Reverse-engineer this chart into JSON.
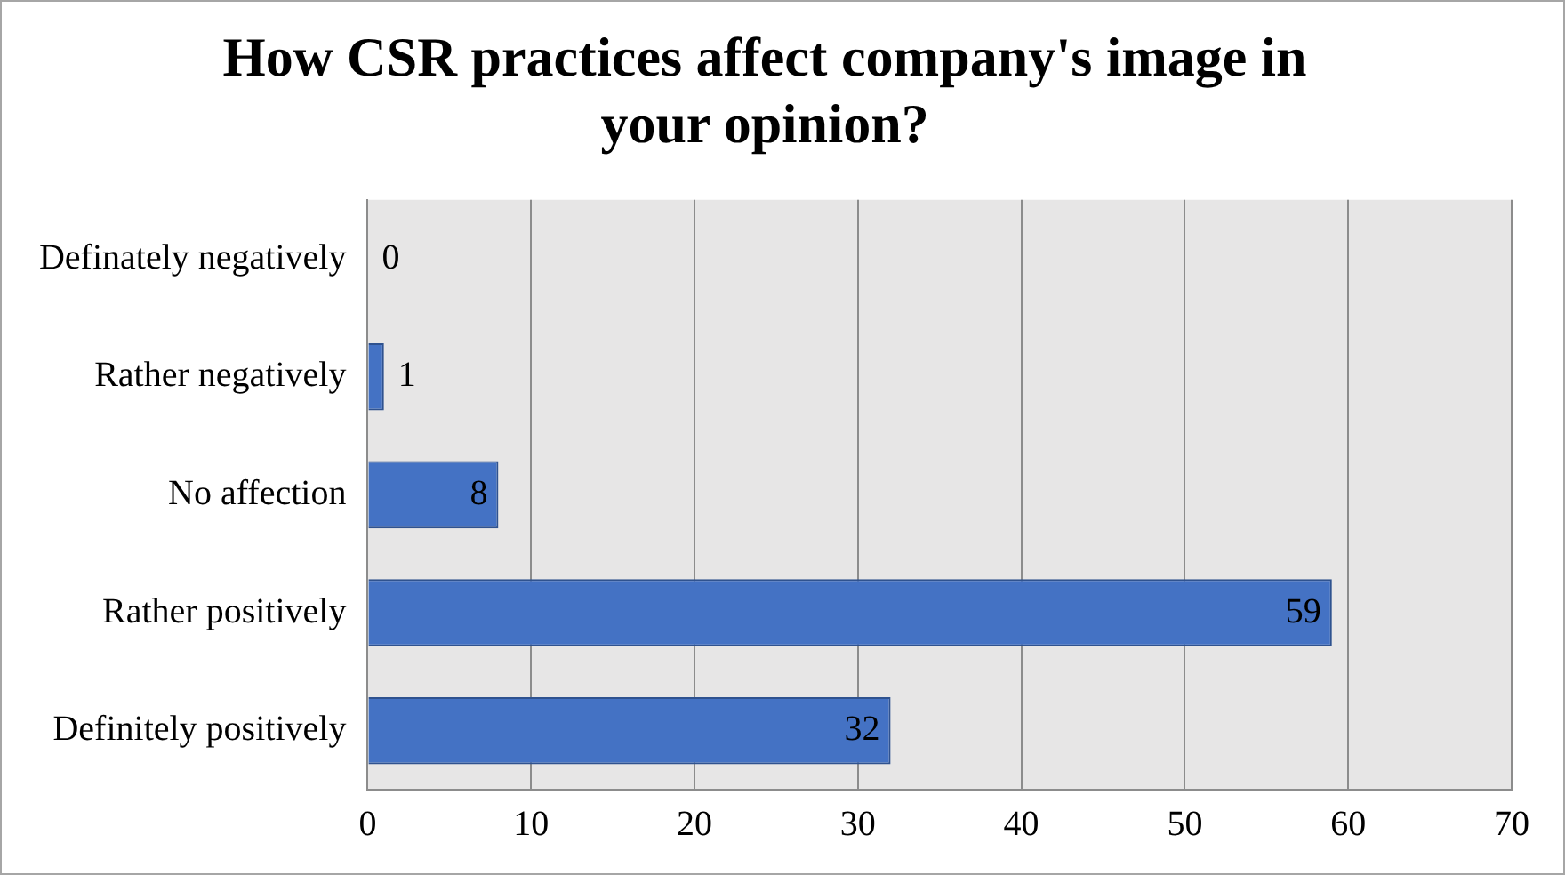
{
  "chart_data": {
    "type": "bar",
    "orientation": "horizontal",
    "title": "How CSR practices affect company's image in your opinion?",
    "categories": [
      "Definately negatively",
      "Rather negatively",
      "No affection",
      "Rather positively",
      "Definitely positively"
    ],
    "values": [
      0,
      1,
      8,
      59,
      32
    ],
    "color": "#4472c4",
    "xlim": [
      0,
      70
    ],
    "xticks": [
      0,
      10,
      20,
      30,
      40,
      50,
      60,
      70
    ],
    "grid": "x",
    "data_labels": true,
    "legend": false
  }
}
